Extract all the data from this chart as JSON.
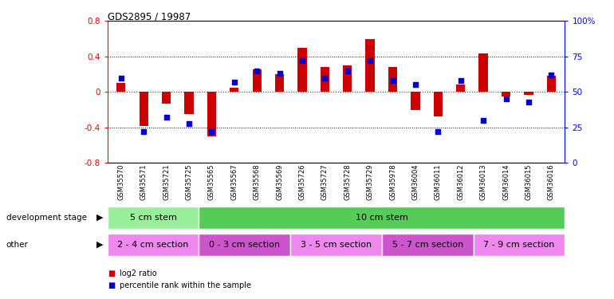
{
  "title": "GDS2895 / 19987",
  "samples": [
    "GSM35570",
    "GSM35571",
    "GSM35721",
    "GSM35725",
    "GSM35565",
    "GSM35567",
    "GSM35568",
    "GSM35569",
    "GSM35726",
    "GSM35727",
    "GSM35728",
    "GSM35729",
    "GSM35978",
    "GSM36004",
    "GSM36011",
    "GSM36012",
    "GSM36013",
    "GSM36014",
    "GSM36015",
    "GSM36016"
  ],
  "log2_ratio": [
    0.1,
    -0.38,
    -0.13,
    -0.25,
    -0.5,
    0.05,
    0.25,
    0.2,
    0.5,
    0.28,
    0.3,
    0.6,
    0.28,
    -0.2,
    -0.28,
    0.08,
    0.43,
    -0.05,
    -0.03,
    0.18
  ],
  "percentile": [
    60,
    22,
    32,
    28,
    22,
    57,
    65,
    63,
    72,
    60,
    65,
    72,
    58,
    55,
    22,
    58,
    30,
    45,
    43,
    62
  ],
  "ylim_left": [
    -0.8,
    0.8
  ],
  "ylim_right": [
    0,
    100
  ],
  "bar_color": "#cc0000",
  "dot_color": "#0000cc",
  "zero_line_color": "#cc0000",
  "dev_stage_row": {
    "label": "development stage",
    "groups": [
      {
        "text": "5 cm stem",
        "start": 0,
        "end": 4,
        "color": "#99ee99"
      },
      {
        "text": "10 cm stem",
        "start": 4,
        "end": 20,
        "color": "#55cc55"
      }
    ]
  },
  "other_row": {
    "label": "other",
    "groups": [
      {
        "text": "2 - 4 cm section",
        "start": 0,
        "end": 4,
        "color": "#ee88ee"
      },
      {
        "text": "0 - 3 cm section",
        "start": 4,
        "end": 8,
        "color": "#cc55cc"
      },
      {
        "text": "3 - 5 cm section",
        "start": 8,
        "end": 12,
        "color": "#ee88ee"
      },
      {
        "text": "5 - 7 cm section",
        "start": 12,
        "end": 16,
        "color": "#cc55cc"
      },
      {
        "text": "7 - 9 cm section",
        "start": 16,
        "end": 20,
        "color": "#ee88ee"
      }
    ]
  },
  "legend": [
    {
      "label": "log2 ratio",
      "color": "#cc0000"
    },
    {
      "label": "percentile rank within the sample",
      "color": "#0000cc"
    }
  ]
}
